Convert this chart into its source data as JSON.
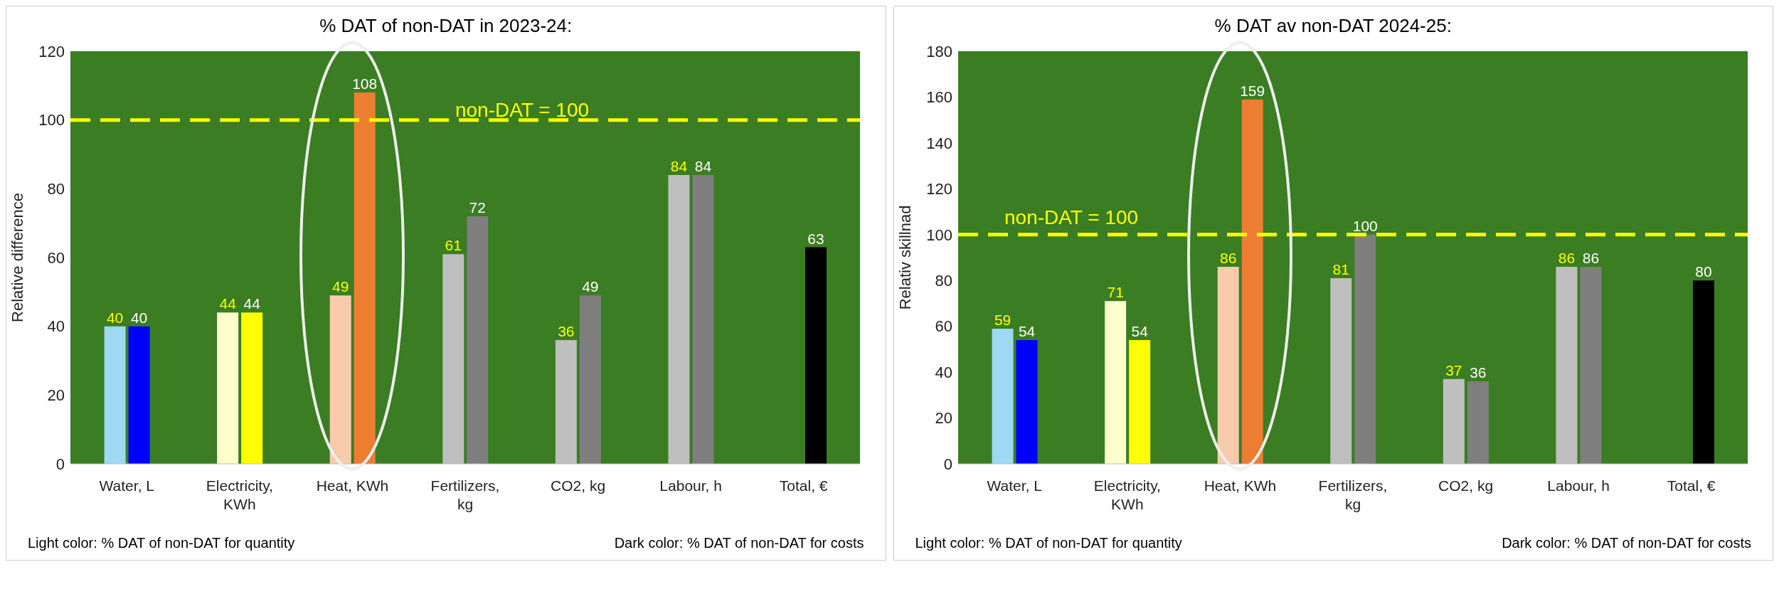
{
  "chart_data": [
    {
      "type": "bar",
      "title": "% DAT of non-DAT in 2023-24:",
      "ylabel": "Relative difference",
      "categories": [
        "Water, L",
        "Electricity, KWh",
        "Heat, KWh",
        "Fertilizers, kg",
        "CO2, kg",
        "Labour, h",
        "Total, €"
      ],
      "series": [
        {
          "colors": [
            "#9dd9f3",
            "#ffffcc",
            "#f8cbad",
            "#bfbfbf",
            "#bfbfbf",
            "#bfbfbf",
            "#000000"
          ],
          "values": [
            40,
            44,
            49,
            61,
            36,
            84,
            null
          ]
        },
        {
          "colors": [
            "#0000ff",
            "#ffff00",
            "#ed7d31",
            "#7f7f7f",
            "#7f7f7f",
            "#7f7f7f",
            "#000000"
          ],
          "values": [
            40,
            44,
            108,
            72,
            49,
            84,
            63
          ]
        }
      ],
      "ylim": [
        0,
        120
      ],
      "yticks": [
        0,
        20,
        40,
        60,
        80,
        100,
        120
      ],
      "grid": false,
      "legend": false,
      "data_labels": true,
      "ref_lines": [
        {
          "axis": "y",
          "value": 100,
          "label": "non-DAT = 100",
          "color": "#ffff00",
          "line_style": "dashed"
        }
      ],
      "annotations": [
        "Light color: % DAT of non-DAT for quantity",
        "Dark color: % DAT of non-DAT for costs"
      ]
    },
    {
      "type": "bar",
      "title": "% DAT av non-DAT 2024-25:",
      "ylabel": "Relativ skillnad",
      "categories": [
        "Water, L",
        "Electricity, KWh",
        "Heat, KWh",
        "Fertilizers, kg",
        "CO2, kg",
        "Labour, h",
        "Total, €"
      ],
      "series": [
        {
          "colors": [
            "#9dd9f3",
            "#ffffcc",
            "#f8cbad",
            "#bfbfbf",
            "#bfbfbf",
            "#bfbfbf",
            "#000000"
          ],
          "values": [
            59,
            71,
            86,
            81,
            37,
            86,
            null
          ]
        },
        {
          "colors": [
            "#0000ff",
            "#ffff00",
            "#ed7d31",
            "#7f7f7f",
            "#7f7f7f",
            "#7f7f7f",
            "#000000"
          ],
          "values": [
            54,
            54,
            159,
            100,
            36,
            86,
            80
          ]
        }
      ],
      "ylim": [
        0,
        180
      ],
      "yticks": [
        0,
        20,
        40,
        60,
        80,
        100,
        120,
        140,
        160,
        180
      ],
      "grid": false,
      "legend": false,
      "data_labels": true,
      "ref_lines": [
        {
          "axis": "y",
          "value": 100,
          "label": "non-DAT = 100",
          "color": "#ffff00",
          "line_style": "dashed"
        }
      ],
      "annotations": [
        "Light color: % DAT of non-DAT for quantity",
        "Dark color: % DAT of non-DAT for costs"
      ]
    }
  ]
}
